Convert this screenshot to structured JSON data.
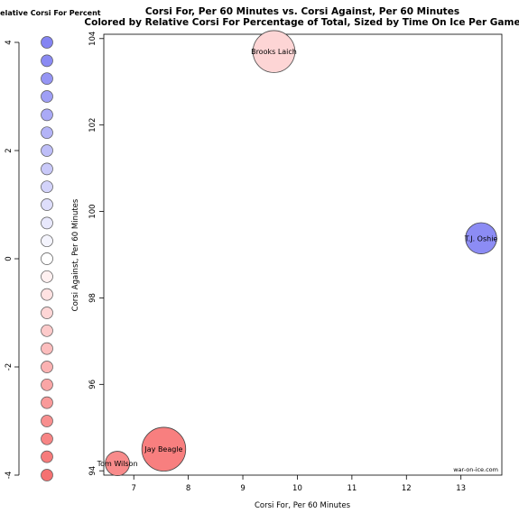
{
  "chart_data": [
    {
      "type": "scatter",
      "title_line1": "Corsi For, Per 60 Minutes vs. Corsi Against, Per 60 Minutes",
      "title_line2": "Colored by Relative Corsi For Percentage of Total, Sized by Time On Ice Per Game",
      "xlabel": "Corsi For, Per 60 Minutes",
      "ylabel": "Corsi Against, Per 60 Minutes",
      "xlim": [
        6.45,
        13.75
      ],
      "ylim": [
        93.9,
        104.1
      ],
      "xticks": [
        7,
        8,
        9,
        10,
        11,
        12,
        13
      ],
      "yticks": [
        94,
        96,
        98,
        100,
        102,
        104
      ],
      "watermark": "war-on-ice.com",
      "points": [
        {
          "label": "Brooks Laich",
          "x": 9.57,
          "y": 103.7,
          "size": 0.86,
          "color": "#fdd5d5"
        },
        {
          "label": "T.J. Oshie",
          "x": 13.37,
          "y": 99.38,
          "size": 0.64,
          "color": "#8c8cf4"
        },
        {
          "label": "Jay Beagle",
          "x": 7.55,
          "y": 94.5,
          "size": 0.9,
          "color": "#f87f7f"
        },
        {
          "label": "Tom Wilson",
          "x": 6.7,
          "y": 94.17,
          "size": 0.5,
          "color": "#f88b8b"
        }
      ]
    },
    {
      "type": "legend-scale",
      "title": "Relative Corsi For Percent",
      "yticks": [
        4,
        2,
        0,
        -2,
        -4
      ],
      "ylim": [
        -4,
        4
      ],
      "swatches": [
        {
          "value": 4.0,
          "color": "#8484f2"
        },
        {
          "value": 3.66,
          "color": "#8a8af3"
        },
        {
          "value": 3.33,
          "color": "#9595f4"
        },
        {
          "value": 3.0,
          "color": "#9f9ff5"
        },
        {
          "value": 2.66,
          "color": "#aaaaf6"
        },
        {
          "value": 2.33,
          "color": "#b4b4f7"
        },
        {
          "value": 2.0,
          "color": "#bebef8"
        },
        {
          "value": 1.66,
          "color": "#c9c9f9"
        },
        {
          "value": 1.33,
          "color": "#d3d3fa"
        },
        {
          "value": 1.0,
          "color": "#dedefb"
        },
        {
          "value": 0.66,
          "color": "#e8e8fc"
        },
        {
          "value": 0.33,
          "color": "#f4f4fd"
        },
        {
          "value": 0.0,
          "color": "#ffffff"
        },
        {
          "value": -0.33,
          "color": "#fff0f0"
        },
        {
          "value": -0.66,
          "color": "#ffe2e2"
        },
        {
          "value": -1.0,
          "color": "#fed6d6"
        },
        {
          "value": -1.33,
          "color": "#fdcaca"
        },
        {
          "value": -1.66,
          "color": "#fcbdbd"
        },
        {
          "value": -2.0,
          "color": "#fbb2b2"
        },
        {
          "value": -2.33,
          "color": "#faa6a6"
        },
        {
          "value": -2.66,
          "color": "#f99a9a"
        },
        {
          "value": -3.0,
          "color": "#f88f8f"
        },
        {
          "value": -3.33,
          "color": "#f78585"
        },
        {
          "value": -3.66,
          "color": "#f67b7b"
        },
        {
          "value": -4.0,
          "color": "#f57272"
        }
      ]
    }
  ]
}
